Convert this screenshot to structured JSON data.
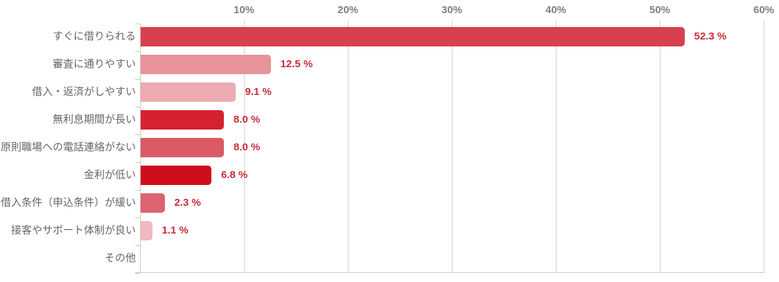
{
  "chart_data": {
    "type": "bar",
    "orientation": "horizontal",
    "title": "",
    "categories": [
      "すぐに借りられる",
      "審査に通りやすい",
      "借入・返済がしやすい",
      "無利息期間が長い",
      "原則職場への電話連絡がない",
      "金利が低い",
      "借入条件（申込条件）が緩い",
      "接客やサポート体制が良い",
      "その他"
    ],
    "values": [
      52.3,
      12.5,
      9.1,
      8.0,
      8.0,
      6.8,
      2.3,
      1.1,
      0
    ],
    "value_labels": [
      "52.3 %",
      "12.5 %",
      "9.1 %",
      "8.0 %",
      "8.0 %",
      "6.8 %",
      "2.3 %",
      "1.1 %",
      ""
    ],
    "bar_colors": [
      "#d7404e",
      "#e8929b",
      "#edaab2",
      "#d62230",
      "#da5a65",
      "#cf0d1d",
      "#dc6470",
      "#f0b8c0",
      null
    ],
    "x_axis": {
      "min": 0,
      "max": 60,
      "ticks": [
        10,
        20,
        30,
        40,
        50,
        60
      ],
      "tick_labels": [
        "10%",
        "20%",
        "30%",
        "40%",
        "50%",
        "60%"
      ],
      "grid": true,
      "tick_label_position": "top"
    },
    "colors": {
      "value_label": "#c82d3a",
      "tick_label": "#7f7f7f",
      "category_label": "#666666",
      "gridline": "#d2d2d2",
      "axis": "#c9c9c9",
      "background": "#ffffff"
    },
    "legend": null
  }
}
